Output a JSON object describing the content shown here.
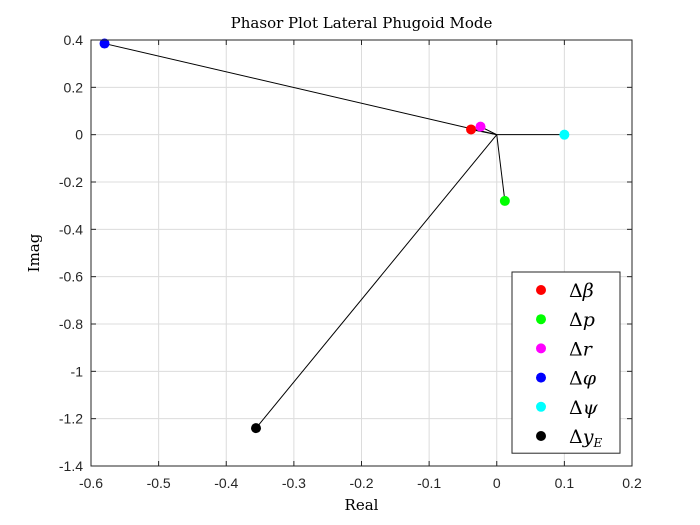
{
  "chart_data": {
    "type": "scatter",
    "title": "Phasor Plot Lateral Phugoid Mode",
    "xlabel": "Real",
    "ylabel": "Imag",
    "xlim": [
      -0.6,
      0.2
    ],
    "ylim": [
      -1.4,
      0.4
    ],
    "grid": true,
    "legend_position": "bottom-right",
    "x_ticks": [
      "-0.6",
      "-0.5",
      "-0.4",
      "-0.3",
      "-0.2",
      "-0.1",
      "0",
      "0.1",
      "0.2"
    ],
    "y_ticks": [
      "0.4",
      "0.2",
      "0",
      "-0.2",
      "-0.4",
      "-0.6",
      "-0.8",
      "-1",
      "-1.2",
      "-1.4"
    ],
    "series": [
      {
        "name": "Δβ",
        "symbol": "β",
        "subscript": "",
        "color": "#ff0000",
        "x": -0.038,
        "y": 0.022
      },
      {
        "name": "Δp",
        "symbol": "p",
        "subscript": "",
        "color": "#00ff00",
        "x": 0.012,
        "y": -0.28
      },
      {
        "name": "Δr",
        "symbol": "r",
        "subscript": "",
        "color": "#ff00ff",
        "x": -0.024,
        "y": 0.034
      },
      {
        "name": "Δφ",
        "symbol": "φ",
        "subscript": "",
        "color": "#0000ff",
        "x": -0.58,
        "y": 0.385
      },
      {
        "name": "Δψ",
        "symbol": "ψ",
        "subscript": "",
        "color": "#00ffff",
        "x": 0.1,
        "y": 0.0
      },
      {
        "name": "Δy_E",
        "symbol": "y",
        "subscript": "E",
        "color": "#000000",
        "x": -0.356,
        "y": -1.24
      }
    ],
    "vector_origin": [
      0,
      0
    ],
    "vector_color": "#000000"
  }
}
